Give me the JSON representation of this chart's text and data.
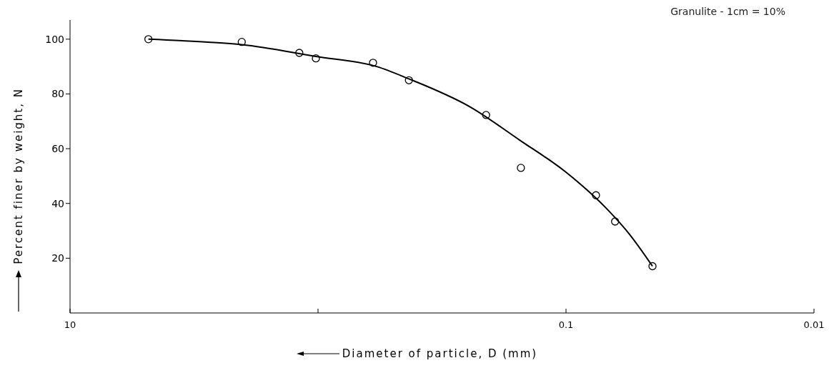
{
  "chart_data": {
    "type": "scatter",
    "xlabel": "Diameter of particle, D (mm)",
    "ylabel": "Percent finer by weight, N",
    "annotations": [
      "Granulite - 1cm = 10%"
    ],
    "log": "x",
    "xlim": [
      10,
      0.01
    ],
    "xticks": [
      10,
      {
        "value": 1,
        "label": null
      },
      0.1,
      0.01
    ],
    "ylim": [
      0,
      107
    ],
    "yticks": [
      20,
      40,
      60,
      80,
      100
    ],
    "marker": "circle",
    "series": [
      {
        "color": "#000000",
        "x": [
          4.83,
          2.03,
          1.19,
          1.02,
          0.6,
          0.43,
          0.21,
          0.152,
          0.0757,
          0.0634,
          0.0448
        ],
        "values": [
          100,
          99,
          95,
          93,
          91.4,
          85,
          72.3,
          53,
          43,
          33.4,
          17.1
        ]
      },
      {
        "type": "line",
        "color": "#000000",
        "marker": "none",
        "x": [
          4.83,
          2.78,
          2.03,
          1.02,
          0.58,
          0.43,
          0.243,
          0.153,
          0.1,
          0.0684,
          0.0554,
          0.0448
        ],
        "values": [
          100,
          98.9,
          98,
          93.7,
          90,
          85.5,
          75.2,
          63,
          51.4,
          38,
          28.7,
          17.1
        ]
      }
    ]
  }
}
